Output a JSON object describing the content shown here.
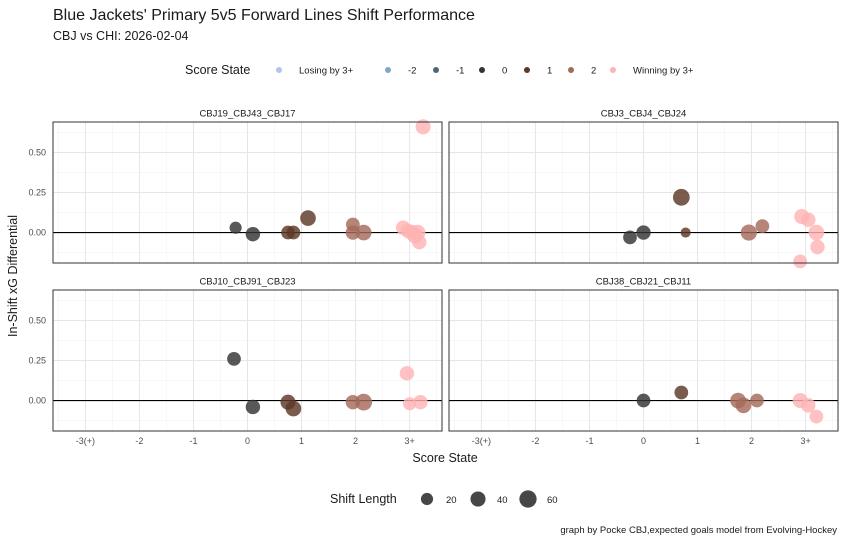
{
  "chart_data": {
    "type": "scatter",
    "title": "Blue Jackets' Primary 5v5 Forward Lines Shift Performance",
    "subtitle": "CBJ vs CHI: 2026-02-04",
    "xlabel": "Score State",
    "ylabel": "In-Shift xG Differential",
    "caption": "graph by Pocke CBJ,expected goals model from Evolving-Hockey",
    "xlim": [
      -3.6,
      3.6
    ],
    "ylim": [
      -0.19,
      0.69
    ],
    "x_ticks": [
      {
        "value": -3,
        "label": "-3(+)"
      },
      {
        "value": -2,
        "label": "-2"
      },
      {
        "value": -1,
        "label": "-1"
      },
      {
        "value": 0,
        "label": "0"
      },
      {
        "value": 1,
        "label": "1"
      },
      {
        "value": 2,
        "label": "2"
      },
      {
        "value": 3,
        "label": "3+"
      }
    ],
    "y_ticks": [
      {
        "value": 0,
        "label": "0.00"
      },
      {
        "value": 0.25,
        "label": "0.25"
      },
      {
        "value": 0.5,
        "label": "0.50"
      }
    ],
    "color_legend": {
      "title": "Score State",
      "entries": [
        {
          "label": "Losing by 3+",
          "color": "#b3c4e8"
        },
        {
          "label": "-2",
          "color": "#7ea7c2"
        },
        {
          "label": "-1",
          "color": "#4c6878"
        },
        {
          "label": "0",
          "color": "#333333"
        },
        {
          "label": "1",
          "color": "#5c3826"
        },
        {
          "label": "2",
          "color": "#a36a5a"
        },
        {
          "label": "Winning by 3+",
          "color": "#ffb3b3"
        }
      ]
    },
    "size_legend": {
      "title": "Shift Length",
      "entries": [
        {
          "label": "20",
          "value": 20
        },
        {
          "label": "40",
          "value": 40
        },
        {
          "label": "60",
          "value": 60
        }
      ]
    },
    "facets": [
      {
        "label": "CBJ19_CBJ43_CBJ17",
        "points": [
          {
            "x": -0.22,
            "y": 0.03,
            "score": "0",
            "size": 20
          },
          {
            "x": 0.1,
            "y": -0.01,
            "score": "0",
            "size": 35
          },
          {
            "x": 0.75,
            "y": 0.0,
            "score": "1",
            "size": 30
          },
          {
            "x": 0.85,
            "y": 0.0,
            "score": "1",
            "size": 30
          },
          {
            "x": 1.12,
            "y": 0.09,
            "score": "1",
            "size": 45
          },
          {
            "x": 1.95,
            "y": 0.05,
            "score": "2",
            "size": 30
          },
          {
            "x": 1.95,
            "y": 0.0,
            "score": "2",
            "size": 35
          },
          {
            "x": 2.15,
            "y": 0.0,
            "score": "2",
            "size": 45
          },
          {
            "x": 2.88,
            "y": 0.03,
            "score": "3+",
            "size": 35
          },
          {
            "x": 2.97,
            "y": 0.01,
            "score": "3+",
            "size": 35
          },
          {
            "x": 3.05,
            "y": 0.0,
            "score": "3+",
            "size": 40
          },
          {
            "x": 3.1,
            "y": -0.02,
            "score": "3+",
            "size": 45
          },
          {
            "x": 3.15,
            "y": 0.0,
            "score": "3+",
            "size": 45
          },
          {
            "x": 3.18,
            "y": -0.06,
            "score": "3+",
            "size": 35
          },
          {
            "x": 3.25,
            "y": 0.66,
            "score": "3+",
            "size": 40
          }
        ]
      },
      {
        "label": "CBJ3_CBJ4_CBJ24",
        "points": [
          {
            "x": -0.25,
            "y": -0.03,
            "score": "0",
            "size": 30
          },
          {
            "x": 0.0,
            "y": 0.0,
            "score": "0",
            "size": 35
          },
          {
            "x": 0.7,
            "y": 0.22,
            "score": "1",
            "size": 55
          },
          {
            "x": 0.78,
            "y": 0.0,
            "score": "1",
            "size": 10
          },
          {
            "x": 1.95,
            "y": 0.0,
            "score": "2",
            "size": 50
          },
          {
            "x": 2.2,
            "y": 0.04,
            "score": "2",
            "size": 30
          },
          {
            "x": 2.9,
            "y": -0.18,
            "score": "3+",
            "size": 30
          },
          {
            "x": 2.93,
            "y": 0.1,
            "score": "3+",
            "size": 40
          },
          {
            "x": 3.05,
            "y": 0.08,
            "score": "3+",
            "size": 35
          },
          {
            "x": 3.2,
            "y": 0.0,
            "score": "3+",
            "size": 45
          },
          {
            "x": 3.22,
            "y": -0.09,
            "score": "3+",
            "size": 35
          }
        ]
      },
      {
        "label": "CBJ10_CBJ91_CBJ23",
        "points": [
          {
            "x": -0.25,
            "y": 0.26,
            "score": "0",
            "size": 30
          },
          {
            "x": 0.1,
            "y": -0.04,
            "score": "0",
            "size": 35
          },
          {
            "x": 0.75,
            "y": -0.01,
            "score": "1",
            "size": 40
          },
          {
            "x": 0.85,
            "y": -0.05,
            "score": "1",
            "size": 45
          },
          {
            "x": 1.95,
            "y": -0.01,
            "score": "2",
            "size": 35
          },
          {
            "x": 2.15,
            "y": -0.01,
            "score": "2",
            "size": 55
          },
          {
            "x": 2.95,
            "y": 0.17,
            "score": "3+",
            "size": 35
          },
          {
            "x": 3.0,
            "y": -0.02,
            "score": "3+",
            "size": 25
          },
          {
            "x": 3.2,
            "y": -0.01,
            "score": "3+",
            "size": 35
          }
        ]
      },
      {
        "label": "CBJ38_CBJ21_CBJ11",
        "points": [
          {
            "x": 0.0,
            "y": 0.0,
            "score": "0",
            "size": 30
          },
          {
            "x": 0.7,
            "y": 0.05,
            "score": "1",
            "size": 30
          },
          {
            "x": 1.75,
            "y": 0.0,
            "score": "2",
            "size": 45
          },
          {
            "x": 1.85,
            "y": -0.03,
            "score": "2",
            "size": 45
          },
          {
            "x": 2.1,
            "y": 0.0,
            "score": "2",
            "size": 30
          },
          {
            "x": 2.9,
            "y": 0.0,
            "score": "3+",
            "size": 40
          },
          {
            "x": 3.05,
            "y": -0.03,
            "score": "3+",
            "size": 35
          },
          {
            "x": 3.2,
            "y": -0.1,
            "score": "3+",
            "size": 30
          }
        ]
      }
    ]
  }
}
